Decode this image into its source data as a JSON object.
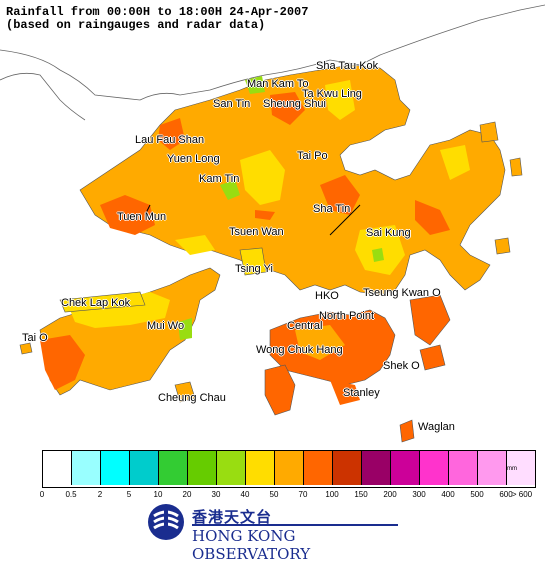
{
  "title": {
    "line1": "Rainfall from 00:00H to 18:00H 24-Apr-2007",
    "line2": "(based on raingauges and radar data)"
  },
  "places": [
    {
      "id": "sha-tau-kok",
      "label": "Sha Tau Kok"
    },
    {
      "id": "man-kam-to",
      "label": "Man Kam To"
    },
    {
      "id": "ta-kwu-ling",
      "label": "Ta Kwu Ling"
    },
    {
      "id": "san-tin",
      "label": "San Tin"
    },
    {
      "id": "sheung-shui",
      "label": "Sheung Shui"
    },
    {
      "id": "lau-fau-shan",
      "label": "Lau Fau Shan"
    },
    {
      "id": "yuen-long",
      "label": "Yuen Long"
    },
    {
      "id": "tai-po",
      "label": "Tai Po"
    },
    {
      "id": "kam-tin",
      "label": "Kam Tin"
    },
    {
      "id": "tuen-mun",
      "label": "Tuen Mun"
    },
    {
      "id": "sha-tin",
      "label": "Sha Tin"
    },
    {
      "id": "tsuen-wan",
      "label": "Tsuen Wan"
    },
    {
      "id": "sai-kung",
      "label": "Sai Kung"
    },
    {
      "id": "tsing-yi",
      "label": "Tsing Yi"
    },
    {
      "id": "chek-lap-kok",
      "label": "Chek Lap Kok"
    },
    {
      "id": "hko",
      "label": "HKO"
    },
    {
      "id": "tseung-kwan-o",
      "label": "Tseung Kwan O"
    },
    {
      "id": "mui-wo",
      "label": "Mui Wo"
    },
    {
      "id": "north-point",
      "label": "North Point"
    },
    {
      "id": "central",
      "label": "Central"
    },
    {
      "id": "tai-o",
      "label": "Tai O"
    },
    {
      "id": "wong-chuk-hang",
      "label": "Wong Chuk Hang"
    },
    {
      "id": "shek-o",
      "label": "Shek O"
    },
    {
      "id": "stanley",
      "label": "Stanley"
    },
    {
      "id": "cheung-chau",
      "label": "Cheung Chau"
    },
    {
      "id": "waglan",
      "label": "Waglan"
    }
  ],
  "legend": {
    "unit": "mm",
    "colors": [
      "#ffffff",
      "#99ffff",
      "#00ffff",
      "#00cccc",
      "#33cc33",
      "#66cc00",
      "#99dd11",
      "#ffdd00",
      "#ffaa00",
      "#ff6600",
      "#cc3300",
      "#990066",
      "#cc0099",
      "#ff33cc",
      "#ff66dd",
      "#ff99ee",
      "#ffddff"
    ],
    "ticks": [
      "0",
      "0.5",
      "2",
      "5",
      "10",
      "20",
      "30",
      "40",
      "50",
      "70",
      "100",
      "150",
      "200",
      "300",
      "400",
      "500",
      "600",
      "> 600"
    ]
  },
  "logo": {
    "chinese": "香港天文台",
    "english": "HONG KONG OBSERVATORY"
  }
}
